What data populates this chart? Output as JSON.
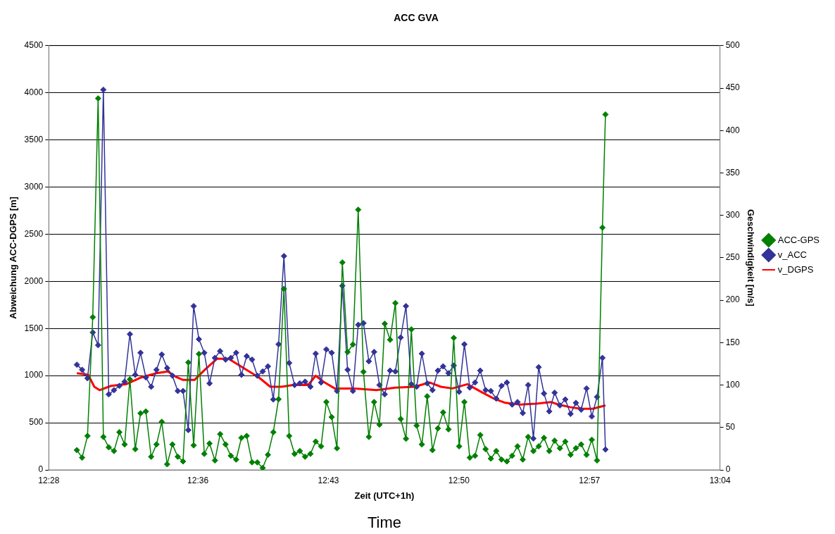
{
  "chart_data": {
    "type": "line",
    "title": "ACC GVA",
    "xlabel": "Zeit (UTC+1h)",
    "ylabel": "Abweichung ACC-DGPS [m]",
    "y2label": "Geschwindigkeit [m/s]",
    "annotations": [
      "Time"
    ],
    "x": [
      12.4918,
      12.4965,
      12.5013,
      12.506,
      12.5108,
      12.5155,
      12.5203,
      12.525,
      12.5298,
      12.5345,
      12.5392,
      12.544,
      12.5487,
      12.5535,
      12.5582,
      12.563,
      12.5677,
      12.5725,
      12.5772,
      12.582,
      12.5867,
      12.5914,
      12.5962,
      12.6009,
      12.6057,
      12.6104,
      12.6152,
      12.6199,
      12.6247,
      12.6294,
      12.6342,
      12.6389,
      12.6436,
      12.6484,
      12.6531,
      12.6579,
      12.6626,
      12.6674,
      12.6721,
      12.6769,
      12.6816,
      12.6864,
      12.6911,
      12.6958,
      12.7006,
      12.7053,
      12.7101,
      12.7148,
      12.7196,
      12.7243,
      12.7291,
      12.7338,
      12.7386,
      12.7433,
      12.748,
      12.7528,
      12.7575,
      12.7623,
      12.767,
      12.7718,
      12.7765,
      12.7813,
      12.786,
      12.7908,
      12.7955,
      12.8002,
      12.805,
      12.8097,
      12.8145,
      12.8192,
      12.824,
      12.8287,
      12.8335,
      12.8382,
      12.843,
      12.8477,
      12.8524,
      12.8572,
      12.8619,
      12.8667,
      12.8714,
      12.8762,
      12.8809,
      12.8857,
      12.8904,
      12.8952,
      12.8999,
      12.9046,
      12.9094,
      12.9141,
      12.9189,
      12.9236,
      12.9284,
      12.9331,
      12.9379,
      12.9426,
      12.9474,
      12.9521,
      12.9568,
      12.9616,
      12.9643
    ],
    "series": [
      {
        "name": "ACC-GPS",
        "color": "#008000",
        "marker": "diamond",
        "values": [
          210,
          130,
          360,
          1620,
          3940,
          350,
          240,
          200,
          400,
          270,
          960,
          220,
          600,
          620,
          140,
          270,
          510,
          60,
          270,
          140,
          90,
          1140,
          260,
          1230,
          170,
          280,
          100,
          380,
          270,
          150,
          110,
          340,
          360,
          80,
          80,
          20,
          160,
          400,
          750,
          1920,
          360,
          170,
          200,
          140,
          170,
          300,
          250,
          720,
          560,
          230,
          2200,
          1250,
          1330,
          2760,
          1040,
          350,
          720,
          480,
          1550,
          1380,
          1770,
          540,
          330,
          1490,
          470,
          270,
          780,
          210,
          440,
          610,
          430,
          1400,
          250,
          720,
          130,
          150,
          370,
          220,
          120,
          200,
          110,
          90,
          150,
          250,
          110,
          350,
          200,
          250,
          340,
          200,
          310,
          230,
          300,
          160,
          230,
          270,
          160,
          320,
          100,
          2570,
          3770
        ]
      },
      {
        "name": "v_ACC",
        "color": "#333399",
        "marker": "diamond",
        "axis": "y2",
        "values": [
          124,
          118,
          108,
          162,
          147,
          448,
          89,
          94,
          99,
          104,
          160,
          112,
          138,
          109,
          98,
          118,
          136,
          120,
          111,
          93,
          93,
          47,
          193,
          154,
          138,
          102,
          132,
          140,
          130,
          132,
          138,
          112,
          134,
          130,
          111,
          116,
          122,
          83,
          148,
          252,
          126,
          100,
          102,
          104,
          98,
          137,
          103,
          142,
          138,
          93,
          217,
          118,
          93,
          171,
          173,
          128,
          139,
          100,
          89,
          117,
          116,
          156,
          193,
          101,
          98,
          137,
          102,
          94,
          117,
          122,
          114,
          123,
          92,
          148,
          97,
          103,
          117,
          94,
          93,
          84,
          99,
          103,
          77,
          80,
          67,
          100,
          37,
          121,
          90,
          69,
          91,
          76,
          83,
          66,
          79,
          71,
          96,
          63,
          86,
          132,
          24
        ]
      },
      {
        "name": "v_DGPS",
        "color": "#ff0000",
        "marker": "none",
        "axis": "y2",
        "x": [
          12.4918,
          12.502,
          12.5074,
          12.5121,
          12.5223,
          12.5359,
          12.5494,
          12.563,
          12.5731,
          12.5799,
          12.5867,
          12.5969,
          12.607,
          12.6172,
          12.6274,
          12.6409,
          12.6545,
          12.6647,
          12.6748,
          12.685,
          12.6986,
          12.7053,
          12.7121,
          12.7223,
          12.7392,
          12.7596,
          12.7765,
          12.7935,
          12.807,
          12.8172,
          12.8274,
          12.8409,
          12.8545,
          12.8647,
          12.8748,
          12.8884,
          12.902,
          12.9155,
          12.9223,
          12.9325,
          12.9426,
          12.9528,
          12.9643
        ],
        "values": [
          114,
          112,
          98,
          94,
          99,
          101,
          109,
          114,
          116,
          110,
          106,
          106,
          119,
          131,
          131,
          120,
          109,
          98,
          98,
          100,
          100,
          111,
          104,
          96,
          96,
          94,
          97,
          98,
          103,
          98,
          96,
          101,
          91,
          84,
          79,
          77,
          78,
          80,
          77,
          74,
          72,
          72,
          76
        ]
      }
    ],
    "xlim": [
      12.4667,
      13.0667
    ],
    "xticks": [
      {
        "value": 12.4667,
        "label": "12:28"
      },
      {
        "value": 12.6,
        "label": "12:36"
      },
      {
        "value": 12.7167,
        "label": "12:43"
      },
      {
        "value": 12.8333,
        "label": "12:50"
      },
      {
        "value": 12.95,
        "label": "12:57"
      },
      {
        "value": 13.0667,
        "label": "13:04"
      }
    ],
    "ylim": [
      0,
      4500
    ],
    "yticks": [
      0,
      500,
      1000,
      1500,
      2000,
      2500,
      3000,
      3500,
      4000,
      4500
    ],
    "y2lim": [
      0,
      500
    ],
    "y2ticks": [
      0,
      50,
      100,
      150,
      200,
      250,
      300,
      350,
      400,
      450,
      500
    ],
    "grid": "y",
    "legend": "right",
    "line_style": "solid"
  }
}
